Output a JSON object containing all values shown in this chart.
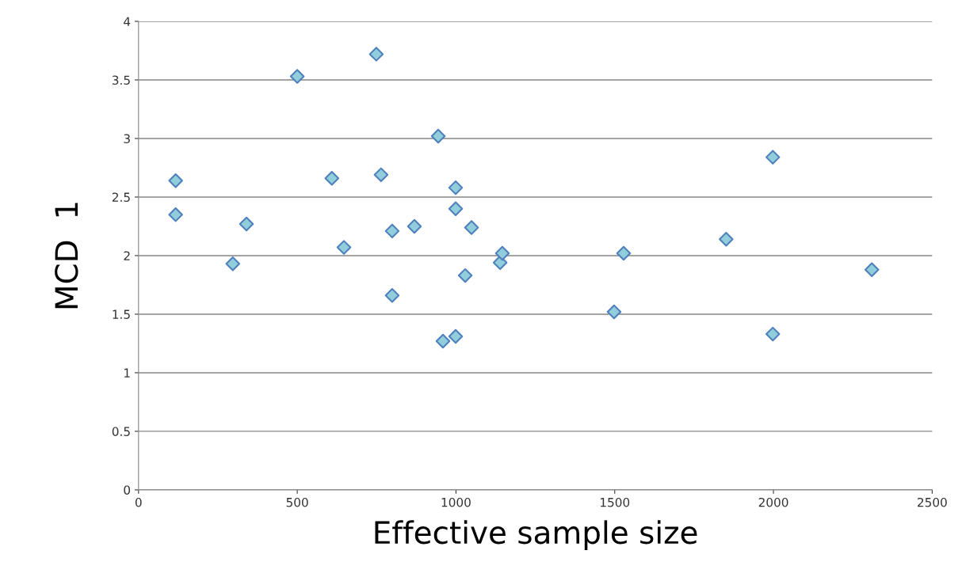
{
  "chart_data": {
    "type": "scatter",
    "xlabel": "Effective sample size",
    "ylabel": "MCD  1",
    "series": [
      {
        "color": "#92cddc",
        "x": [
          117,
          117,
          297,
          340,
          500,
          609,
          647,
          749,
          764,
          799,
          799,
          869,
          944,
          959,
          999,
          999,
          999,
          1029,
          1049,
          1139,
          1146,
          1498,
          1528,
          1851,
          1998,
          1998,
          2310
        ],
        "values": [
          2.64,
          2.35,
          1.93,
          2.27,
          3.53,
          2.66,
          2.07,
          3.72,
          2.69,
          2.21,
          1.66,
          2.25,
          3.02,
          1.27,
          2.58,
          2.4,
          1.31,
          1.83,
          2.24,
          1.94,
          2.02,
          1.52,
          2.02,
          2.14,
          2.84,
          1.33,
          1.88
        ]
      }
    ],
    "xlim": [
      0,
      2500
    ],
    "xticks": [
      0,
      500,
      1000,
      1500,
      2000,
      2500
    ],
    "ylim": [
      0,
      4
    ],
    "yticks": [
      0,
      {
        "value": 0.5,
        "label": "0.5"
      },
      1,
      {
        "value": 1.5,
        "label": "1.5"
      },
      2,
      {
        "value": 2.5,
        "label": "2.5"
      },
      3,
      {
        "value": 3.5,
        "label": "3.5"
      },
      4
    ],
    "grid": "y",
    "marker": "diamond",
    "legend": false
  }
}
